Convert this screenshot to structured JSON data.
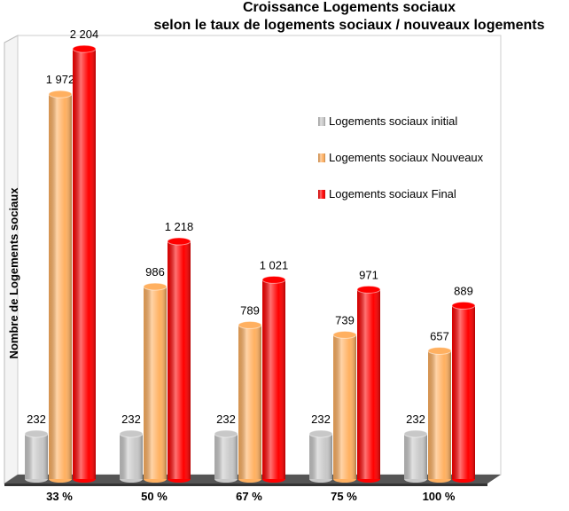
{
  "chart_data": {
    "type": "bar",
    "title": "Croissance Logements sociaux",
    "subtitle": "selon le taux de logements sociaux / nouveaux logements",
    "y_label": "Nombre de Logements sociaux",
    "categories": [
      "33 %",
      "50 %",
      "67 %",
      "75 %",
      "100 %"
    ],
    "series": [
      {
        "name": "Logements sociaux initial",
        "color": "#c8c8c8",
        "values": [
          232,
          232,
          232,
          232,
          232
        ],
        "value_labels": [
          "232",
          "232",
          "232",
          "232",
          "232"
        ]
      },
      {
        "name": "Logements sociaux Nouveaux",
        "color": "#ffb060",
        "values": [
          1972,
          986,
          789,
          739,
          657
        ],
        "value_labels": [
          "1 972",
          "986",
          "789",
          "739",
          "657"
        ]
      },
      {
        "name": "Logements sociaux Final",
        "color": "#ff0000",
        "values": [
          2204,
          1218,
          1021,
          971,
          889
        ],
        "value_labels": [
          "2 204",
          "1 218",
          "1 021",
          "971",
          "889"
        ]
      }
    ]
  }
}
